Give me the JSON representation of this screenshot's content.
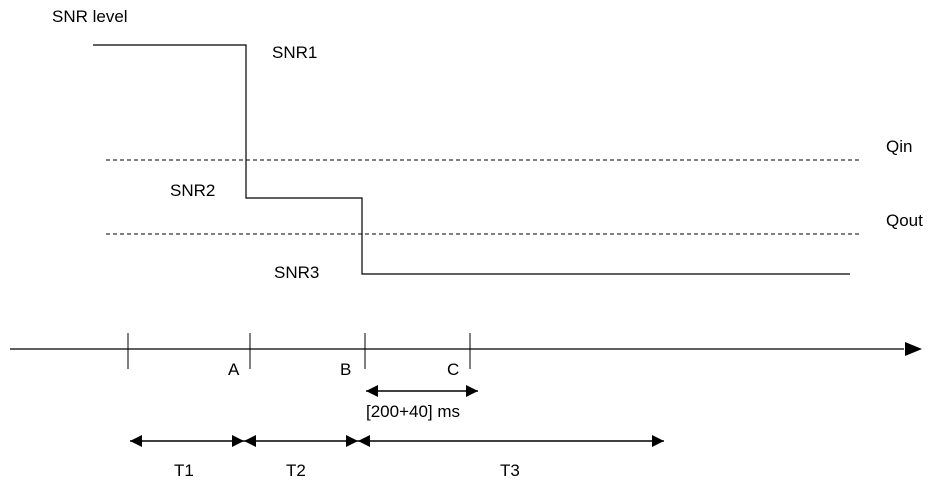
{
  "diagram": {
    "y_axis_label": "SNR level",
    "levels": {
      "snr1": "SNR1",
      "snr2": "SNR2",
      "snr3": "SNR3"
    },
    "thresholds": {
      "qin": "Qin",
      "qout": "Qout"
    },
    "time_marks": {
      "a": "A",
      "b": "B",
      "c": "C"
    },
    "window_label": "[200+40] ms",
    "periods": {
      "t1": "T1",
      "t2": "T2",
      "t3": "T3"
    },
    "colors": {
      "line": "#000000",
      "background": "#ffffff"
    }
  }
}
